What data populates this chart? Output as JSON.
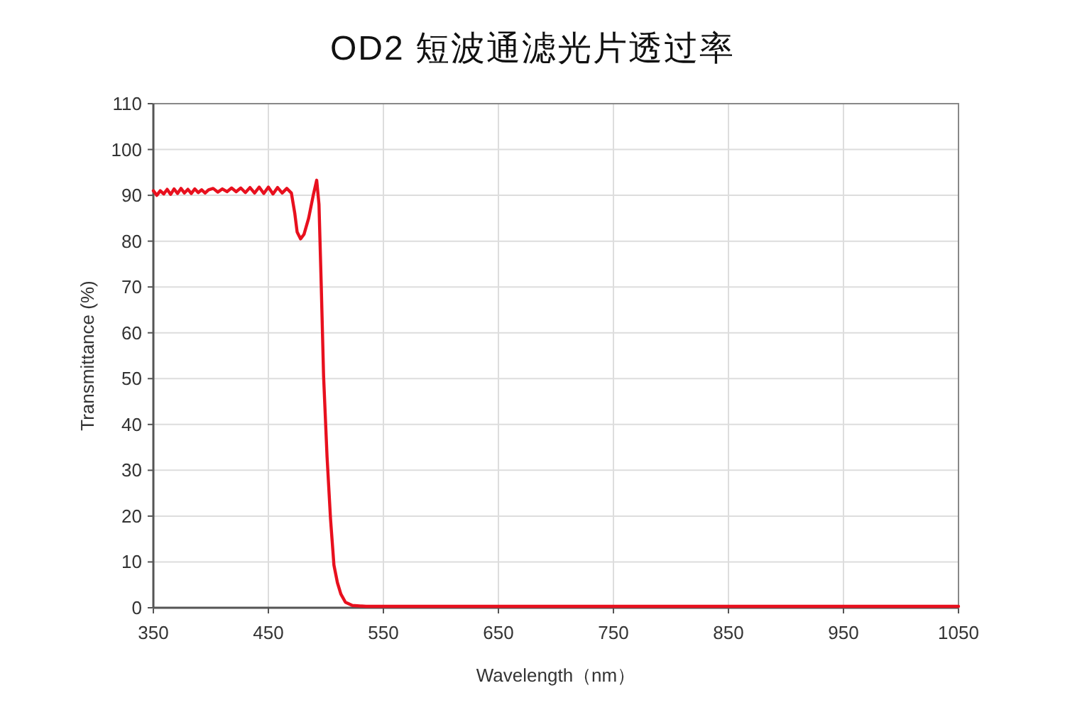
{
  "chart_data": {
    "type": "line",
    "title": "OD2 短波通滤光片透过率",
    "xlabel": "Wavelength（nm）",
    "ylabel": "Transmittance (%)",
    "x": [
      350,
      353,
      356,
      359,
      362,
      365,
      368,
      371,
      374,
      377,
      380,
      383,
      386,
      389,
      392,
      395,
      398,
      402,
      406,
      410,
      414,
      418,
      422,
      426,
      430,
      434,
      438,
      442,
      446,
      450,
      454,
      458,
      462,
      466,
      470,
      473,
      475,
      478,
      481,
      485,
      489,
      492,
      494,
      496,
      498,
      501,
      504,
      507,
      510,
      513,
      517,
      523,
      535,
      600,
      700,
      800,
      900,
      1000,
      1050
    ],
    "series": [
      {
        "color": "#e8101e",
        "values": [
          91,
          90,
          91,
          90.3,
          91.3,
          90.2,
          91.4,
          90.4,
          91.5,
          90.5,
          91.3,
          90.4,
          91.4,
          90.6,
          91.2,
          90.5,
          91.2,
          91.5,
          90.7,
          91.4,
          90.8,
          91.6,
          90.8,
          91.6,
          90.6,
          91.7,
          90.5,
          91.8,
          90.4,
          91.8,
          90.3,
          91.7,
          90.5,
          91.5,
          90.5,
          86,
          82,
          80.5,
          81.5,
          85,
          90,
          93.3,
          88,
          70,
          50.5,
          33,
          19.5,
          9.3,
          5.5,
          3,
          1.2,
          0.5,
          0.3,
          0.3,
          0.3,
          0.3,
          0.3,
          0.3,
          0.3
        ]
      }
    ],
    "xlim": [
      350,
      1050
    ],
    "xticks": [
      350,
      450,
      550,
      650,
      750,
      850,
      950,
      1050
    ],
    "ylim": [
      0,
      110
    ],
    "yticks": [
      0,
      10,
      20,
      30,
      40,
      50,
      60,
      70,
      80,
      90,
      100,
      110
    ],
    "grid": true,
    "marker": "none",
    "line_style": "solid"
  }
}
